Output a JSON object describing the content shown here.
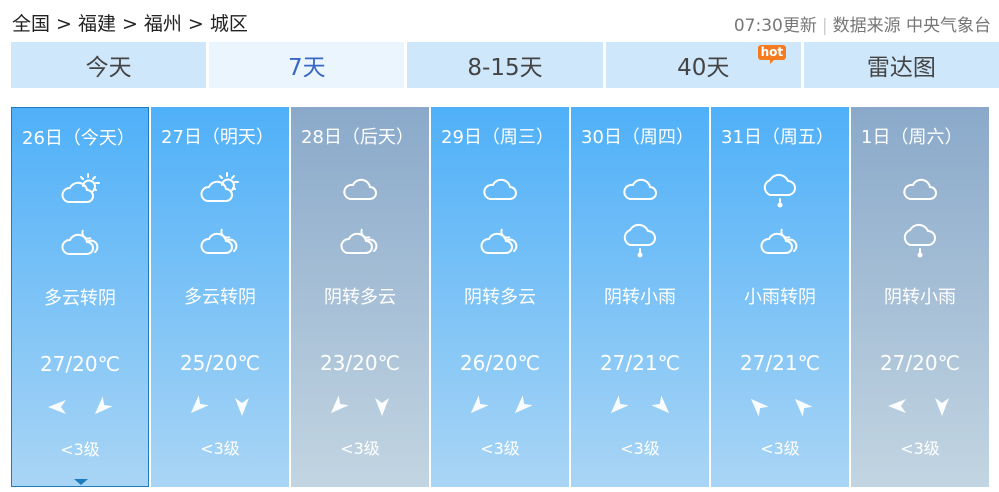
{
  "breadcrumb": [
    "全国",
    ">",
    "福建",
    ">",
    "福州",
    ">",
    "城区"
  ],
  "update": "07:30更新",
  "source": "数据来源 中央气象台",
  "tabs": [
    {
      "label": "今天"
    },
    {
      "label": "7天",
      "active": true
    },
    {
      "label": "8-15天"
    },
    {
      "label": "40天",
      "badge": "hot"
    },
    {
      "label": "雷达图"
    }
  ],
  "colors": {
    "day_blue": "#4fb0f8",
    "day_gray": "#8aa9ca",
    "hot": "#f47b20",
    "active_tab": "#3a67c6"
  },
  "days": [
    {
      "date": "26日（今天）",
      "icon_day": "cloud-sun",
      "icon_night": "cloud-moon",
      "desc": "多云转阴",
      "temp": "27/20℃",
      "wind_dirs": [
        270,
        225
      ],
      "wind": "<3级",
      "gray": false,
      "selected": true
    },
    {
      "date": "27日（明天）",
      "icon_day": "cloud-sun",
      "icon_night": "cloud-moon",
      "desc": "多云转阴",
      "temp": "25/20℃",
      "wind_dirs": [
        225,
        180
      ],
      "wind": "<3级",
      "gray": false
    },
    {
      "date": "28日（后天）",
      "icon_day": "cloud",
      "icon_night": "cloud-moon",
      "desc": "阴转多云",
      "temp": "23/20℃",
      "wind_dirs": [
        225,
        180
      ],
      "wind": "<3级",
      "gray": true
    },
    {
      "date": "29日（周三）",
      "icon_day": "cloud",
      "icon_night": "cloud-moon",
      "desc": "阴转多云",
      "temp": "26/20℃",
      "wind_dirs": [
        225,
        225
      ],
      "wind": "<3级",
      "gray": false
    },
    {
      "date": "30日（周四）",
      "icon_day": "cloud",
      "icon_night": "cloud-rain",
      "desc": "阴转小雨",
      "temp": "27/21℃",
      "wind_dirs": [
        225,
        135
      ],
      "wind": "<3级",
      "gray": false
    },
    {
      "date": "31日（周五）",
      "icon_day": "cloud-rain",
      "icon_night": "cloud-moon",
      "desc": "小雨转阴",
      "temp": "27/21℃",
      "wind_dirs": [
        315,
        315
      ],
      "wind": "<3级",
      "gray": false
    },
    {
      "date": "1日（周六）",
      "icon_day": "cloud",
      "icon_night": "cloud-rain",
      "desc": "阴转小雨",
      "temp": "27/20℃",
      "wind_dirs": [
        270,
        180
      ],
      "wind": "<3级",
      "gray": true
    }
  ]
}
